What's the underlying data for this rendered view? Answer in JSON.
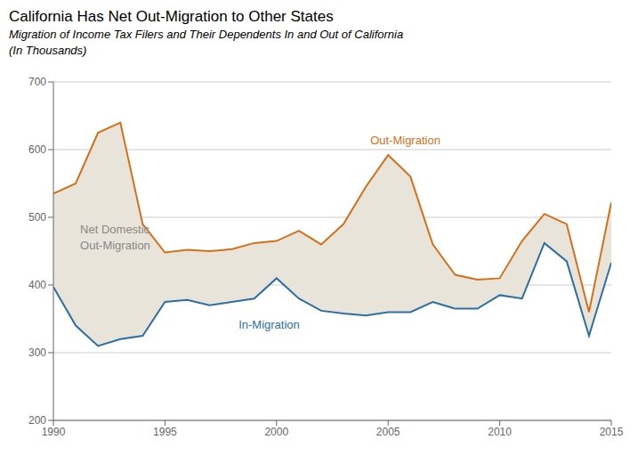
{
  "chart_data": {
    "type": "line",
    "title": "California Has Net Out-Migration to Other States",
    "subtitle": [
      "Migration of Income Tax Filers and Their Dependents In and Out of California",
      "(In Thousands)"
    ],
    "x": [
      1990,
      1991,
      1992,
      1993,
      1994,
      1995,
      1996,
      1997,
      1998,
      1999,
      2000,
      2001,
      2002,
      2003,
      2004,
      2005,
      2006,
      2007,
      2008,
      2009,
      2010,
      2011,
      2012,
      2013,
      2014,
      2015
    ],
    "series": [
      {
        "name": "Out-Migration",
        "color": "#D4701A",
        "values": [
          535,
          550,
          625,
          640,
          490,
          448,
          452,
          450,
          453,
          462,
          465,
          480,
          460,
          490,
          545,
          592,
          560,
          460,
          415,
          408,
          410,
          465,
          505,
          490,
          360,
          522
        ]
      },
      {
        "name": "In-Migration",
        "color": "#2E6FA3",
        "values": [
          397,
          340,
          310,
          320,
          325,
          375,
          378,
          370,
          375,
          380,
          410,
          380,
          362,
          358,
          355,
          360,
          360,
          375,
          365,
          365,
          385,
          380,
          462,
          435,
          325,
          433
        ]
      }
    ],
    "color": "#E8E4DA",
    "xlim": [
      1990,
      2015
    ],
    "xticks": [
      1990,
      1995,
      2000,
      2005,
      2010,
      2015
    ],
    "ylim": [
      200,
      700
    ],
    "yticks": [
      200,
      300,
      400,
      500,
      600,
      700
    ],
    "grid": true,
    "annotations": [
      {
        "text": "Out-Migration",
        "x": 2004.2,
        "y": 608,
        "color": "#D4701A"
      },
      {
        "text": "In-Migration",
        "x": 1998.3,
        "y": 348,
        "color": "#2E6FA3"
      },
      {
        "text": "Net Domestic\nOut-Migration",
        "x": 1991.2,
        "y": 468,
        "color": "#888888"
      }
    ]
  }
}
